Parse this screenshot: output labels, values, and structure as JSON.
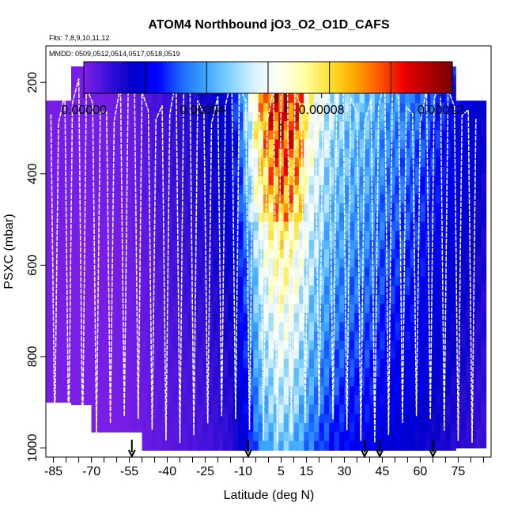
{
  "chart_data": {
    "type": "heatmap",
    "title": "ATOM4 Northbound jO3_O2_O1D_CAFS",
    "subtitle_flights": "Flts: 7,8,9,10,11,12",
    "subtitle_dates": "MMDD: 0509,0512,0514,0517,0518,0519",
    "xlabel": "Latitude (deg N)",
    "ylabel": "PSXC (mbar)",
    "xlim": [
      -88,
      88
    ],
    "ylim": [
      1020,
      120
    ],
    "x_tick_labels": [
      "-85",
      "-70",
      "-55",
      "-40",
      "-25",
      "-10",
      "5",
      "15",
      "30",
      "45",
      "60",
      "75"
    ],
    "x_tick_values": [
      -85,
      -70,
      -55,
      -40,
      -25,
      -10,
      5,
      15,
      30,
      45,
      60,
      75
    ],
    "x_minor_ticks": [
      -80,
      -75,
      -65,
      -60,
      -50,
      -45,
      -35,
      -30,
      -20,
      -15,
      -5,
      0,
      10,
      20,
      25,
      35,
      40,
      50,
      55,
      65,
      70,
      80,
      85
    ],
    "y_tick_labels": [
      "200",
      "400",
      "600",
      "800",
      "1000"
    ],
    "y_tick_values": [
      200,
      400,
      600,
      800,
      1000
    ],
    "colorbar": {
      "min": 0,
      "max": 0.000124,
      "tick_labels": [
        "0.00000",
        "0.00004",
        "0.00008",
        "0.00012"
      ],
      "tick_values": [
        0,
        4e-05,
        8e-05,
        0.00012
      ],
      "colors": [
        "#7f1fe8",
        "#3a10d9",
        "#0000c8",
        "#0000ff",
        "#1d6cff",
        "#3fa8ff",
        "#86d3ff",
        "#dff3ff",
        "#fffff0",
        "#ffffa0",
        "#ffe033",
        "#ffaa00",
        "#ff5a00",
        "#f00000",
        "#b00000",
        "#7a0000"
      ]
    },
    "data_extent_note": "color field covers approximately lat -88 to 85, 165 to 1000 mbar",
    "latitude_profile": [
      {
        "lat": -88,
        "value": 1e-06
      },
      {
        "lat": -75,
        "value": 8e-07
      },
      {
        "lat": -65,
        "value": 1.2e-06
      },
      {
        "lat": -55,
        "value": 2e-06
      },
      {
        "lat": -45,
        "value": 6e-06
      },
      {
        "lat": -35,
        "value": 9e-06
      },
      {
        "lat": -25,
        "value": 1.2e-05
      },
      {
        "lat": -15,
        "value": 1.8e-05
      },
      {
        "lat": -8,
        "value": 4e-05
      },
      {
        "lat": -4,
        "value": 6.4e-05
      },
      {
        "lat": 0,
        "value": 7.7e-05
      },
      {
        "lat": 5,
        "value": 8.5e-05
      },
      {
        "lat": 10,
        "value": 8e-05
      },
      {
        "lat": 15,
        "value": 6.6e-05
      },
      {
        "lat": 20,
        "value": 5.5e-05
      },
      {
        "lat": 25,
        "value": 4.7e-05
      },
      {
        "lat": 32,
        "value": 4.2e-05
      },
      {
        "lat": 40,
        "value": 4e-05
      },
      {
        "lat": 47,
        "value": 3.4e-05
      },
      {
        "lat": 55,
        "value": 3.2e-05
      },
      {
        "lat": 65,
        "value": 2.6e-05
      },
      {
        "lat": 75,
        "value": 2e-05
      },
      {
        "lat": 85,
        "value": 1.5e-05
      }
    ],
    "bottom_markers_lat": [
      -54,
      -8,
      38,
      44,
      65
    ],
    "flight_track_note": "white lines trace aircraft altitude profiles (profiling between ~180 and ~1000 mbar)"
  }
}
